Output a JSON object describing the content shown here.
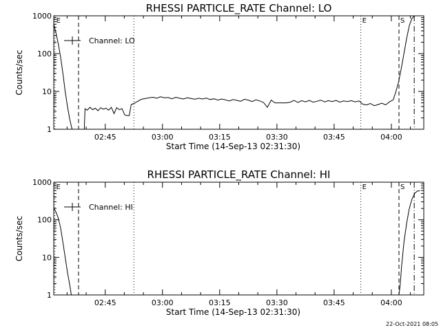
{
  "chart_data": [
    {
      "type": "line",
      "title": "RHESSI PARTICLE_RATE Channel: LO",
      "ylabel": "Counts/sec",
      "xlabel": "Start Time (14-Sep-13 02:31:30)",
      "yscale": "log",
      "ylim": [
        1,
        1000
      ],
      "xlim_minutes": [
        0,
        97
      ],
      "y_ticks": [
        {
          "value": 1,
          "label": "1"
        },
        {
          "value": 10,
          "label": "10"
        },
        {
          "value": 100,
          "label": "100"
        },
        {
          "value": 1000,
          "label": "1000"
        }
      ],
      "x_ticks": [
        {
          "minutes": 13.5,
          "label": "02:45"
        },
        {
          "minutes": 28.5,
          "label": "03:00"
        },
        {
          "minutes": 43.5,
          "label": "03:15"
        },
        {
          "minutes": 58.5,
          "label": "03:30"
        },
        {
          "minutes": 73.5,
          "label": "03:45"
        },
        {
          "minutes": 88.5,
          "label": "04:00"
        }
      ],
      "legend": {
        "label": "Channel: LO",
        "position": "top-left"
      },
      "markers": [
        {
          "minutes": 0.3,
          "style": "dotted",
          "label": "E"
        },
        {
          "minutes": 6.5,
          "style": "dashed",
          "label": ""
        },
        {
          "minutes": 21.0,
          "style": "dotted",
          "label": ""
        },
        {
          "minutes": 80.5,
          "style": "dotted",
          "label": "E"
        },
        {
          "minutes": 90.5,
          "style": "dashed",
          "label": "S"
        },
        {
          "minutes": 94.5,
          "style": "dashdot",
          "label": ""
        }
      ],
      "series": [
        {
          "label": "Channel: LO",
          "segments": [
            [
              [
                0,
                600
              ],
              [
                0.6,
                350
              ],
              [
                1.2,
                180
              ],
              [
                1.8,
                80
              ],
              [
                2.4,
                30
              ],
              [
                3.0,
                10
              ],
              [
                3.6,
                4
              ],
              [
                4.2,
                1.8
              ],
              [
                4.8,
                1.0
              ]
            ],
            [
              [
                8.0,
                1.0
              ],
              [
                8.2,
                3.5
              ],
              [
                8.8,
                3.2
              ],
              [
                9.5,
                3.8
              ],
              [
                10.2,
                3.3
              ],
              [
                10.9,
                3.6
              ],
              [
                11.6,
                3.1
              ],
              [
                12.3,
                3.7
              ],
              [
                13.0,
                3.4
              ],
              [
                13.7,
                3.6
              ],
              [
                14.4,
                3.2
              ],
              [
                15.1,
                3.8
              ],
              [
                15.8,
                2.6
              ],
              [
                16.5,
                3.7
              ],
              [
                17.2,
                3.3
              ],
              [
                17.9,
                3.5
              ],
              [
                18.6,
                2.4
              ],
              [
                19.3,
                2.3
              ],
              [
                19.8,
                2.3
              ],
              [
                20.3,
                4.5
              ],
              [
                21.0,
                4.8
              ],
              [
                22.0,
                5.5
              ],
              [
                23.0,
                6.2
              ],
              [
                24.0,
                6.5
              ],
              [
                25.0,
                6.8
              ],
              [
                26.0,
                7.0
              ],
              [
                27.0,
                6.6
              ],
              [
                28.0,
                7.2
              ],
              [
                29.0,
                6.8
              ],
              [
                30.0,
                6.9
              ],
              [
                31.0,
                6.4
              ],
              [
                32.0,
                7.0
              ],
              [
                33.0,
                6.6
              ],
              [
                34.0,
                6.3
              ],
              [
                35.0,
                6.8
              ],
              [
                36.0,
                6.5
              ],
              [
                37.0,
                6.2
              ],
              [
                38.0,
                6.6
              ],
              [
                39.0,
                6.3
              ],
              [
                40.0,
                6.7
              ],
              [
                41.0,
                6.1
              ],
              [
                42.0,
                6.4
              ],
              [
                43.0,
                5.9
              ],
              [
                44.0,
                6.3
              ],
              [
                45.0,
                6.0
              ],
              [
                46.0,
                5.6
              ],
              [
                47.0,
                6.1
              ],
              [
                48.0,
                5.8
              ],
              [
                49.0,
                5.5
              ],
              [
                50.0,
                6.2
              ],
              [
                51.0,
                5.9
              ],
              [
                52.0,
                5.4
              ],
              [
                53.0,
                6.0
              ],
              [
                54.0,
                5.6
              ],
              [
                55.0,
                5.1
              ],
              [
                56.0,
                3.8
              ],
              [
                57.0,
                5.9
              ],
              [
                58.0,
                5.0
              ],
              [
                59.0,
                5.0
              ],
              [
                60.0,
                5.0
              ],
              [
                61.0,
                5.0
              ],
              [
                62.0,
                5.2
              ],
              [
                63.0,
                5.8
              ],
              [
                64.0,
                5.1
              ],
              [
                65.0,
                5.7
              ],
              [
                66.0,
                5.3
              ],
              [
                67.0,
                5.8
              ],
              [
                68.0,
                5.2
              ],
              [
                69.0,
                5.5
              ],
              [
                70.0,
                5.9
              ],
              [
                71.0,
                5.3
              ],
              [
                72.0,
                5.7
              ],
              [
                73.0,
                5.4
              ],
              [
                74.0,
                5.8
              ],
              [
                75.0,
                5.2
              ],
              [
                76.0,
                5.6
              ],
              [
                77.0,
                5.4
              ],
              [
                78.0,
                5.7
              ],
              [
                79.0,
                5.3
              ],
              [
                80.0,
                5.6
              ],
              [
                81.0,
                4.6
              ],
              [
                82.0,
                4.4
              ],
              [
                83.0,
                4.8
              ],
              [
                84.0,
                4.2
              ],
              [
                85.0,
                4.5
              ],
              [
                86.0,
                4.9
              ],
              [
                87.0,
                4.4
              ],
              [
                88.0,
                5.3
              ],
              [
                89.0,
                6.0
              ],
              [
                89.7,
                10
              ],
              [
                90.4,
                18
              ],
              [
                91.1,
                40
              ],
              [
                91.8,
                100
              ],
              [
                92.5,
                250
              ],
              [
                93.2,
                550
              ],
              [
                93.9,
                850
              ],
              [
                94.6,
                1000
              ],
              [
                95.3,
                1000
              ],
              [
                96.0,
                1000
              ]
            ]
          ]
        }
      ]
    },
    {
      "type": "line",
      "title": "RHESSI PARTICLE_RATE Channel: HI",
      "ylabel": "Counts/sec",
      "xlabel": "Start Time (14-Sep-13 02:31:30)",
      "yscale": "log",
      "ylim": [
        1,
        1000
      ],
      "xlim_minutes": [
        0,
        97
      ],
      "y_ticks": [
        {
          "value": 1,
          "label": "1"
        },
        {
          "value": 10,
          "label": "10"
        },
        {
          "value": 100,
          "label": "100"
        },
        {
          "value": 1000,
          "label": "1000"
        }
      ],
      "x_ticks": [
        {
          "minutes": 13.5,
          "label": "02:45"
        },
        {
          "minutes": 28.5,
          "label": "03:00"
        },
        {
          "minutes": 43.5,
          "label": "03:15"
        },
        {
          "minutes": 58.5,
          "label": "03:30"
        },
        {
          "minutes": 73.5,
          "label": "03:45"
        },
        {
          "minutes": 88.5,
          "label": "04:00"
        }
      ],
      "legend": {
        "label": "Channel: HI",
        "position": "top-left"
      },
      "markers": [
        {
          "minutes": 0.3,
          "style": "dotted",
          "label": "E"
        },
        {
          "minutes": 6.5,
          "style": "dashed",
          "label": ""
        },
        {
          "minutes": 21.0,
          "style": "dotted",
          "label": ""
        },
        {
          "minutes": 80.5,
          "style": "dotted",
          "label": "E"
        },
        {
          "minutes": 90.5,
          "style": "dashed",
          "label": "S"
        },
        {
          "minutes": 94.5,
          "style": "dashdot",
          "label": ""
        }
      ],
      "series": [
        {
          "label": "Channel: HI",
          "segments": [
            [
              [
                0,
                200
              ],
              [
                0.6,
                160
              ],
              [
                1.2,
                110
              ],
              [
                1.8,
                60
              ],
              [
                2.4,
                25
              ],
              [
                3.0,
                10
              ],
              [
                3.6,
                4
              ],
              [
                4.2,
                1.8
              ],
              [
                4.6,
                1.0
              ]
            ],
            [
              [
                90.5,
                1.0
              ],
              [
                90.8,
                1.8
              ],
              [
                91.2,
                6
              ],
              [
                91.8,
                25
              ],
              [
                92.5,
                80
              ],
              [
                93.2,
                200
              ],
              [
                93.9,
                350
              ],
              [
                94.6,
                500
              ],
              [
                95.3,
                580
              ],
              [
                96.0,
                590
              ]
            ]
          ]
        }
      ]
    }
  ],
  "footer": {
    "timestamp": "22-Oct-2021 08:05"
  }
}
